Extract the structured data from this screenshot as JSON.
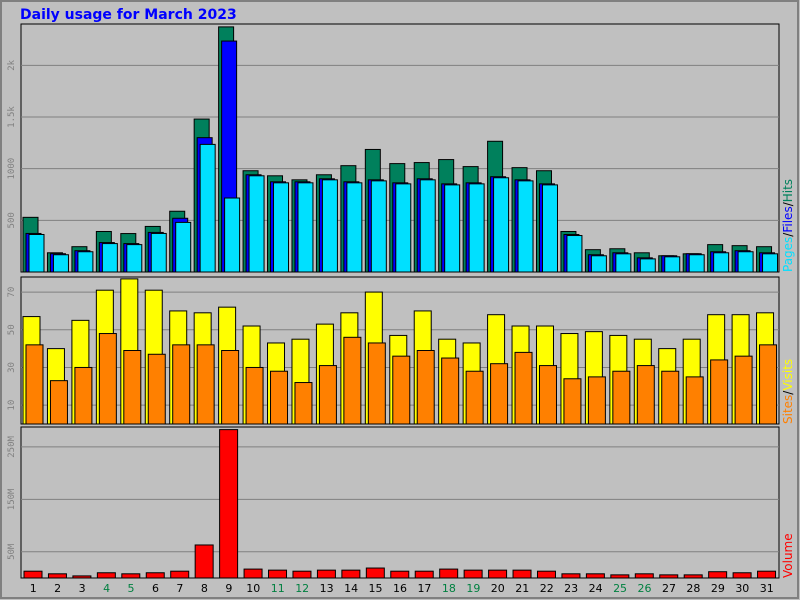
{
  "chart_data": [
    {
      "type": "bar",
      "title": "Daily usage for March 2023",
      "legend_separator": "/",
      "ylim": [
        0,
        2400
      ],
      "yticks": [
        500,
        1000,
        {
          "value": 1500,
          "label": "1.5k"
        },
        {
          "value": 2000,
          "label": "2k"
        }
      ],
      "grid": true,
      "series": [
        {
          "name": "Hits",
          "color": "#00805c",
          "values": [
            529,
            186,
            245,
            392,
            372,
            441,
            588,
            1480,
            2372,
            980,
            931,
            892,
            941,
            1029,
            1186,
            1049,
            1059,
            1088,
            1020,
            1265,
            1010,
            980,
            392,
            216,
            225,
            186,
            157,
            176,
            265,
            255,
            245
          ]
        },
        {
          "name": "Files",
          "color": "#0000ff",
          "values": [
            373,
            177,
            206,
            285,
            275,
            383,
            520,
            1300,
            2235,
            941,
            873,
            873,
            902,
            873,
            892,
            863,
            902,
            853,
            863,
            922,
            892,
            853,
            363,
            167,
            186,
            137,
            157,
            177,
            196,
            206,
            186
          ]
        },
        {
          "name": "Pages",
          "color": "#00e0ff",
          "values": [
            363,
            167,
            196,
            275,
            265,
            373,
            480,
            1235,
            716,
            931,
            863,
            863,
            892,
            863,
            882,
            853,
            892,
            843,
            853,
            912,
            882,
            843,
            353,
            157,
            176,
            127,
            147,
            167,
            186,
            196,
            176
          ]
        }
      ]
    },
    {
      "type": "bar",
      "legend_separator": "/",
      "ylim": [
        0,
        78
      ],
      "yticks": [
        10,
        30,
        50,
        70
      ],
      "grid": true,
      "series": [
        {
          "name": "Visits",
          "color": "#ffff00",
          "values": [
            57,
            40,
            55,
            71,
            77,
            71,
            60,
            59,
            62,
            52,
            43,
            45,
            53,
            59,
            70,
            47,
            60,
            45,
            43,
            58,
            52,
            52,
            48,
            49,
            47,
            45,
            40,
            45,
            58,
            58,
            59
          ]
        },
        {
          "name": "Sites",
          "color": "#ff8000",
          "values": [
            42,
            23,
            30,
            48,
            39,
            37,
            42,
            42,
            39,
            30,
            28,
            22,
            31,
            46,
            43,
            36,
            39,
            35,
            28,
            32,
            38,
            31,
            24,
            25,
            28,
            31,
            28,
            25,
            34,
            36,
            42
          ]
        }
      ]
    },
    {
      "type": "bar",
      "ylim": [
        0,
        288
      ],
      "yticks": [
        {
          "value": 50,
          "label": "50M"
        },
        {
          "value": 150,
          "label": "150M"
        },
        {
          "value": 250,
          "label": "250M"
        }
      ],
      "grid": true,
      "categories": [
        "1",
        "2",
        "3",
        "4",
        "5",
        "6",
        "7",
        "8",
        "9",
        "10",
        "11",
        "12",
        "13",
        "14",
        "15",
        "16",
        "17",
        "18",
        "19",
        "20",
        "21",
        "22",
        "23",
        "24",
        "25",
        "26",
        "27",
        "28",
        "29",
        "30",
        "31"
      ],
      "highlighted_categories": [
        "4",
        "5",
        "11",
        "12",
        "18",
        "19",
        "25",
        "26"
      ],
      "highlight_color": "#008040",
      "series": [
        {
          "name": "Volume",
          "color": "#ff0000",
          "values": [
            13,
            8,
            4,
            10,
            8,
            10,
            13,
            63,
            283,
            17,
            15,
            13,
            15,
            15,
            19,
            13,
            13,
            17,
            15,
            15,
            15,
            13,
            8,
            8,
            6,
            8,
            6,
            6,
            12,
            10,
            13
          ]
        }
      ]
    }
  ]
}
